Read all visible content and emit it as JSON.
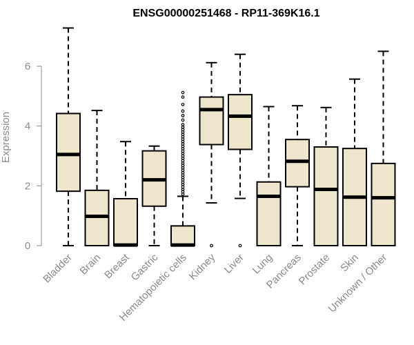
{
  "chart_data": {
    "type": "box",
    "title": "ENSG00000251468 - RP11-369K16.1",
    "xlabel": "",
    "ylabel": "Expression",
    "ylim": [
      0,
      7.3
    ],
    "yticks": [
      0,
      2,
      4,
      6
    ],
    "colors": {
      "box_fill": "#ede6cc",
      "box_stroke": "#000000",
      "axis": "#8a8a8a"
    },
    "categories": [
      "Bladder",
      "Brain",
      "Breast",
      "Gastric",
      "Hematopoietic cells",
      "Kidney",
      "Liver",
      "Lung",
      "Pancreas",
      "Prostate",
      "Skin",
      "Unknown / Other"
    ],
    "boxes": [
      {
        "min": 0,
        "q1": 1.82,
        "median": 3.05,
        "q3": 4.42,
        "max": 7.28,
        "outliers": []
      },
      {
        "min": 0,
        "q1": 0,
        "median": 0.98,
        "q3": 1.85,
        "max": 4.52,
        "outliers": []
      },
      {
        "min": 0,
        "q1": 0,
        "median": 0.02,
        "q3": 1.57,
        "max": 3.48,
        "outliers": []
      },
      {
        "min": 0,
        "q1": 1.32,
        "median": 2.2,
        "q3": 3.17,
        "max": 3.33,
        "outliers": []
      },
      {
        "min": 0,
        "q1": 0,
        "median": 0.02,
        "q3": 0.66,
        "max": 1.65,
        "outliers": [
          1.72,
          1.8,
          1.88,
          1.96,
          2.04,
          2.12,
          2.2,
          2.28,
          2.36,
          2.44,
          2.52,
          2.6,
          2.68,
          2.76,
          2.84,
          2.92,
          3.0,
          3.08,
          3.16,
          3.24,
          3.32,
          3.4,
          3.48,
          3.56,
          3.64,
          3.72,
          3.8,
          3.88,
          3.96,
          4.05,
          4.2,
          4.35,
          4.5,
          4.72,
          4.97,
          5.12
        ]
      },
      {
        "min": 1.43,
        "q1": 3.38,
        "median": 4.55,
        "q3": 4.97,
        "max": 6.12,
        "outliers": [
          0
        ]
      },
      {
        "min": 1.58,
        "q1": 3.22,
        "median": 4.33,
        "q3": 5.05,
        "max": 6.4,
        "outliers": [
          0
        ]
      },
      {
        "min": 0,
        "q1": 0,
        "median": 1.65,
        "q3": 2.13,
        "max": 4.65,
        "outliers": []
      },
      {
        "min": 0,
        "q1": 1.97,
        "median": 2.82,
        "q3": 3.55,
        "max": 4.68,
        "outliers": []
      },
      {
        "min": 0,
        "q1": 0,
        "median": 1.88,
        "q3": 3.3,
        "max": 4.62,
        "outliers": []
      },
      {
        "min": 0,
        "q1": 0,
        "median": 1.62,
        "q3": 3.25,
        "max": 5.57,
        "outliers": []
      },
      {
        "min": 0,
        "q1": 0,
        "median": 1.6,
        "q3": 2.75,
        "max": 6.5,
        "outliers": []
      }
    ]
  }
}
